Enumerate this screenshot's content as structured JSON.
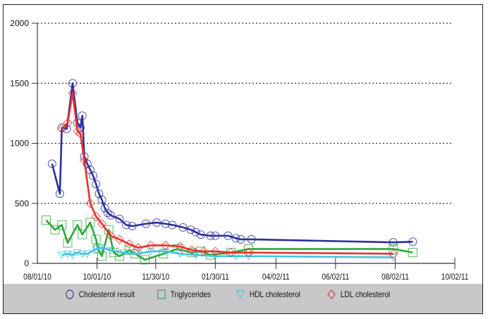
{
  "chart_data": {
    "type": "line",
    "title": "",
    "xlabel": "",
    "ylabel": "",
    "ylim": [
      0,
      2000
    ],
    "yticks": [
      0,
      500,
      1000,
      1500,
      2000
    ],
    "xticks": [
      "08/01/10",
      "10/01/10",
      "11/30/10",
      "01/30/11",
      "04/02/11",
      "06/02/11",
      "08/02/11",
      "10/02/11"
    ],
    "grid": {
      "horizontal": true,
      "style": "dotted"
    },
    "legend_position": "bottom",
    "series": [
      {
        "name": "Cholesterol result",
        "color": "#2b2f9c",
        "marker": "circle",
        "points": [
          [
            "08/16/10",
            830
          ],
          [
            "08/24/10",
            580
          ],
          [
            "08/26/10",
            1130
          ],
          [
            "08/31/10",
            1120
          ],
          [
            "09/06/10",
            1500
          ],
          [
            "09/11/10",
            1170
          ],
          [
            "09/14/10",
            1130
          ],
          [
            "09/16/10",
            1230
          ],
          [
            "09/18/10",
            890
          ],
          [
            "09/21/10",
            830
          ],
          [
            "09/24/10",
            780
          ],
          [
            "09/27/10",
            730
          ],
          [
            "09/30/10",
            660
          ],
          [
            "10/03/10",
            580
          ],
          [
            "10/06/10",
            530
          ],
          [
            "10/09/10",
            460
          ],
          [
            "10/12/10",
            420
          ],
          [
            "10/15/10",
            400
          ],
          [
            "10/24/10",
            370
          ],
          [
            "10/31/10",
            320
          ],
          [
            "11/06/10",
            310
          ],
          [
            "11/20/10",
            330
          ],
          [
            "12/01/10",
            340
          ],
          [
            "12/10/10",
            330
          ],
          [
            "12/17/10",
            320
          ],
          [
            "12/28/10",
            300
          ],
          [
            "01/05/11",
            280
          ],
          [
            "01/10/11",
            260
          ],
          [
            "01/15/11",
            240
          ],
          [
            "01/25/11",
            230
          ],
          [
            "01/30/11",
            230
          ],
          [
            "02/12/11",
            230
          ],
          [
            "02/20/11",
            210
          ],
          [
            "02/25/11",
            200
          ],
          [
            "03/08/11",
            200
          ],
          [
            "07/31/11",
            175
          ],
          [
            "08/20/11",
            180
          ]
        ]
      },
      {
        "name": "Triglycerides",
        "color": "#2ea83a",
        "marker": "square",
        "points": [
          [
            "08/10/10",
            360
          ],
          [
            "08/19/10",
            280
          ],
          [
            "08/26/10",
            320
          ],
          [
            "09/01/10",
            170
          ],
          [
            "09/11/10",
            320
          ],
          [
            "09/16/10",
            240
          ],
          [
            "09/24/10",
            340
          ],
          [
            "09/30/10",
            200
          ],
          [
            "10/02/10",
            120
          ],
          [
            "10/06/10",
            60
          ],
          [
            "10/13/10",
            280
          ],
          [
            "10/18/10",
            90
          ],
          [
            "10/24/10",
            60
          ],
          [
            "11/03/10",
            110
          ],
          [
            "11/09/10",
            80
          ],
          [
            "11/19/10",
            30
          ],
          [
            "12/08/10",
            80
          ],
          [
            "12/22/10",
            120
          ],
          [
            "01/06/11",
            90
          ],
          [
            "01/15/11",
            100
          ],
          [
            "01/25/11",
            70
          ],
          [
            "02/15/11",
            90
          ],
          [
            "03/05/11",
            120
          ],
          [
            "07/31/11",
            120
          ],
          [
            "08/20/11",
            90
          ]
        ]
      },
      {
        "name": "HDL cholesterol",
        "color": "#3ec6e0",
        "marker": "triangle-down",
        "points": [
          [
            "08/26/10",
            70
          ],
          [
            "09/01/10",
            80
          ],
          [
            "09/06/10",
            70
          ],
          [
            "09/11/10",
            90
          ],
          [
            "09/16/10",
            80
          ],
          [
            "09/21/10",
            80
          ],
          [
            "09/30/10",
            120
          ],
          [
            "10/06/10",
            130
          ],
          [
            "10/15/10",
            110
          ],
          [
            "10/28/10",
            90
          ],
          [
            "11/12/10",
            80
          ],
          [
            "11/25/10",
            100
          ],
          [
            "12/10/10",
            100
          ],
          [
            "12/25/10",
            80
          ],
          [
            "01/10/11",
            70
          ],
          [
            "01/30/11",
            60
          ],
          [
            "02/20/11",
            60
          ],
          [
            "03/05/11",
            60
          ],
          [
            "07/31/11",
            50
          ]
        ]
      },
      {
        "name": "LDL cholesterol",
        "color": "#e8312b",
        "marker": "diamond",
        "points": [
          [
            "08/26/10",
            1120
          ],
          [
            "09/01/10",
            1170
          ],
          [
            "09/06/10",
            1420
          ],
          [
            "09/11/10",
            1100
          ],
          [
            "09/14/10",
            1080
          ],
          [
            "09/18/10",
            860
          ],
          [
            "09/24/10",
            500
          ],
          [
            "09/30/10",
            390
          ],
          [
            "10/06/10",
            330
          ],
          [
            "10/15/10",
            230
          ],
          [
            "10/24/10",
            200
          ],
          [
            "11/03/10",
            160
          ],
          [
            "11/12/10",
            130
          ],
          [
            "11/25/10",
            150
          ],
          [
            "12/10/10",
            150
          ],
          [
            "12/25/10",
            140
          ],
          [
            "01/06/11",
            110
          ],
          [
            "01/18/11",
            100
          ],
          [
            "01/30/11",
            100
          ],
          [
            "02/15/11",
            90
          ],
          [
            "03/05/11",
            90
          ],
          [
            "07/31/11",
            80
          ]
        ]
      }
    ]
  },
  "legend": {
    "items": [
      {
        "label": "Cholesterol result",
        "icon": "circle-icon",
        "color": "#2b2f9c"
      },
      {
        "label": "Triglycerides",
        "icon": "square-icon",
        "color": "#2ea83a"
      },
      {
        "label": "HDL cholesterol",
        "icon": "triangle-down-icon",
        "color": "#3ec6e0"
      },
      {
        "label": "LDL cholesterol",
        "icon": "diamond-icon",
        "color": "#e8312b"
      }
    ]
  }
}
